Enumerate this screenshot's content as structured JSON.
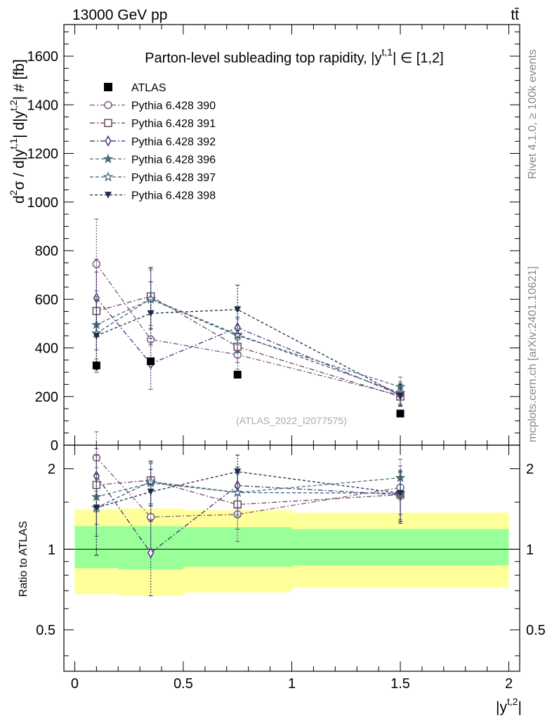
{
  "header": {
    "energy_label": "13000 GeV pp",
    "process_label": "tt̄",
    "side_label_top": "Rivet 4.1.0, ≥ 100k events",
    "side_label_bottom": "mcplots.cern.ch [arXiv:2401.10621]",
    "watermark": "(ATLAS_2022_I2077575)"
  },
  "chart_data": {
    "type": "scatter",
    "title": "Parton-level subleading top rapidity, |y^{t,1}| ∈ [1,2]",
    "title_parts": {
      "main": "Parton-level subleading top rapidity, |y",
      "sup": "t,1",
      "tail": "| ∈ [1,2]"
    },
    "xlabel": "|y^{t,2}|",
    "xlabel_parts": {
      "main": "|y",
      "sup": "t,2",
      "tail": "|"
    },
    "ylabel": "d²σ / d|y^{t,1}| d|y^{t,2}| # [fb]",
    "ylabel_parts": [
      "d",
      "2",
      "σ / d|y",
      "t,1",
      "| d|y",
      "t,2",
      "| # [fb]"
    ],
    "ratio_ylabel": "Ratio to ATLAS",
    "xlim": [
      -0.05,
      2.05
    ],
    "ylim": [
      0,
      1730
    ],
    "ratio_ylim": [
      0.35,
      2.45
    ],
    "x_ticks": [
      0,
      0.5,
      1,
      1.5,
      2
    ],
    "x_tick_labels": [
      "0",
      "0.5",
      "1",
      "1.5",
      "2"
    ],
    "y_ticks": [
      0,
      200,
      400,
      600,
      800,
      1000,
      1200,
      1400,
      1600
    ],
    "y_tick_labels": [
      "0",
      "200",
      "400",
      "600",
      "800",
      "1000",
      "1200",
      "1400",
      "1600"
    ],
    "ratio_ticks": [
      0.5,
      1,
      2
    ],
    "ratio_tick_labels": [
      "0.5",
      "1",
      "2"
    ],
    "bins": [
      [
        0,
        0.2
      ],
      [
        0.2,
        0.5
      ],
      [
        0.5,
        1.0
      ],
      [
        1.0,
        2.0
      ]
    ],
    "x": [
      0.1,
      0.35,
      0.75,
      1.5
    ],
    "data": {
      "name": "ATLAS",
      "values": [
        328,
        345,
        290,
        130
      ],
      "errors": [
        20,
        15,
        12,
        8
      ]
    },
    "data_bands": {
      "stat_up": [
        1.22,
        1.22,
        1.21,
        1.19
      ],
      "stat_down": [
        0.85,
        0.84,
        0.86,
        0.87
      ],
      "tot_up": [
        1.41,
        1.42,
        1.4,
        1.37
      ],
      "tot_down": [
        0.68,
        0.67,
        0.69,
        0.72
      ]
    },
    "series": [
      {
        "name": "Pythia 6.428 390",
        "color": "#7b5a7e",
        "marker": "circle-open",
        "dash": "7,3,2,3",
        "values": [
          745,
          435,
          372,
          205
        ],
        "errors": [
          185,
          110,
          60,
          40
        ]
      },
      {
        "name": "Pythia 6.428 391",
        "color": "#6e4a5c",
        "marker": "square-open",
        "dash": "7,3,2,3",
        "values": [
          552,
          612,
          405,
          200
        ],
        "errors": [
          160,
          120,
          65,
          40
        ]
      },
      {
        "name": "Pythia 6.428 392",
        "color": "#4a2f7a",
        "marker": "diamond-open",
        "dash": "7,3,2,3",
        "values": [
          605,
          335,
          483,
          207
        ],
        "errors": [
          160,
          105,
          70,
          45
        ]
      },
      {
        "name": "Pythia 6.428 396",
        "color": "#4e6e78",
        "marker": "star-filled",
        "dash": "5,3",
        "values": [
          495,
          600,
          450,
          240
        ],
        "errors": [
          140,
          120,
          70,
          40
        ]
      },
      {
        "name": "Pythia 6.428 397",
        "color": "#3e5e7e",
        "marker": "star-open",
        "dash": "5,3",
        "values": [
          460,
          602,
          455,
          215
        ],
        "errors": [
          150,
          125,
          72,
          45
        ]
      },
      {
        "name": "Pythia 6.428 398",
        "color": "#1f2a4a",
        "marker": "triangle-down-filled",
        "dash": "4,3",
        "values": [
          450,
          542,
          558,
          205
        ],
        "errors": [
          150,
          130,
          100,
          45
        ]
      }
    ],
    "ratios": [
      {
        "values": [
          2.2,
          1.32,
          1.35,
          1.7
        ],
        "errors": [
          0.55,
          0.35,
          0.28,
          0.35
        ]
      },
      {
        "values": [
          1.74,
          1.81,
          1.47,
          1.6
        ],
        "errors": [
          0.5,
          0.33,
          0.28,
          0.33
        ]
      },
      {
        "values": [
          1.88,
          0.97,
          1.73,
          1.6
        ],
        "errors": [
          0.5,
          0.3,
          0.3,
          0.35
        ]
      },
      {
        "values": [
          1.57,
          1.77,
          1.63,
          1.85
        ],
        "errors": [
          0.45,
          0.32,
          0.28,
          0.32
        ]
      },
      {
        "values": [
          1.43,
          1.79,
          1.63,
          1.62
        ],
        "errors": [
          0.48,
          0.33,
          0.3,
          0.33
        ]
      },
      {
        "values": [
          1.43,
          1.64,
          1.95,
          1.62
        ],
        "errors": [
          0.48,
          0.35,
          0.3,
          0.35
        ]
      }
    ]
  }
}
